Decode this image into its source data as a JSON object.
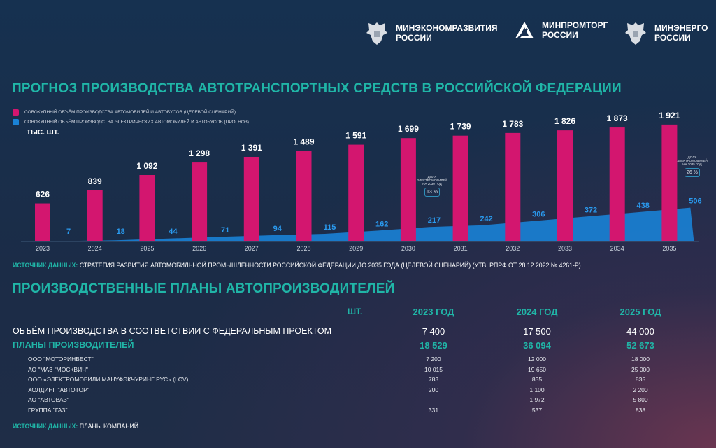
{
  "header": {
    "logos": [
      {
        "line1": "МИНЭКОНОМРАЗВИТИЯ",
        "line2": "РОССИИ",
        "icon": "double-headed-eagle-emblem"
      },
      {
        "line1": "МИНПРОМТОРГ",
        "line2": "РОССИИ",
        "icon": "triangle-logo"
      },
      {
        "line1": "МИНЭНЕРГО",
        "line2": "РОССИИ",
        "icon": "double-headed-eagle-emblem"
      }
    ]
  },
  "chart_data": {
    "type": "bar",
    "title": "ПРОГНОЗ ПРОИЗВОДСТВА АВТОТРАНСПОРТНЫХ СРЕДСТВ В РОССИЙСКОЙ ФЕДЕРАЦИИ",
    "ylabel": "ТЫС. ШТ.",
    "categories": [
      "2023",
      "2024",
      "2025",
      "2026",
      "2027",
      "2028",
      "2029",
      "2030",
      "2031",
      "2032",
      "2033",
      "2034",
      "2035"
    ],
    "series": [
      {
        "name": "СОВОКУПНЫЙ ОБЪЁМ ПРОИЗВОДСТВА АВТОМОБИЛЕЙ И АВТОБУСОВ (ЦЕЛЕВОЙ СЦЕНАРИЙ)",
        "type": "bar",
        "color": "#d3166f",
        "values": [
          626,
          839,
          1092,
          1298,
          1391,
          1489,
          1591,
          1699,
          1739,
          1783,
          1826,
          1873,
          1921
        ],
        "labels": [
          "626",
          "839",
          "1 092",
          "1 298",
          "1 391",
          "1 489",
          "1 591",
          "1 699",
          "1 739",
          "1 783",
          "1 826",
          "1 873",
          "1 921"
        ]
      },
      {
        "name": "СОВОКУПНЫЙ ОБЪЁМ ПРОИЗВОДСТВА ЭЛЕКТРИЧЕСКИХ АВТОМОБИЛЕЙ И АВТОБУСОВ (ПРОГНОЗ)",
        "type": "area",
        "color": "#1a82d6",
        "values": [
          7,
          18,
          44,
          71,
          94,
          115,
          162,
          217,
          242,
          306,
          372,
          438,
          506
        ]
      }
    ],
    "annotations": [
      {
        "year": "2030",
        "text": "ДОЛЯ ЭЛЕКТРОМОБИЛЕЙ НА 2030 ГОД",
        "value": "13 %"
      },
      {
        "year": "2035",
        "text": "ДОЛЯ ЭЛЕКТРОМОБИЛЕЙ НА 2035 ГОД",
        "value": "26 %"
      }
    ],
    "legend": "top-left",
    "grid": false
  },
  "source1": {
    "label": "ИСТОЧНИК ДАННЫХ:",
    "text": " СТРАТЕГИЯ РАЗВИТИЯ АВТОМОБИЛЬНОЙ ПРОМЫШЛЕННОСТИ РОССИЙСКОЙ ФЕДЕРАЦИИ ДО 2035 ГОДА (ЦЕЛЕВОЙ СЦЕНАРИЙ) (УТВ. РПРФ ОТ 28.12.2022 № 4261-Р)"
  },
  "plans": {
    "title": "ПРОИЗВОДСТВЕННЫЕ ПЛАНЫ АВТОПРОИЗВОДИТЕЛЕЙ",
    "unit": "ШТ.",
    "columns": [
      "2023 ГОД",
      "2024 ГОД",
      "2025 ГОД"
    ],
    "federal": {
      "label": "ОБЪЁМ ПРОИЗВОДСТВА В СООТВЕТСТВИИ С ФЕДЕРАЛЬНЫМ ПРОЕКТОМ",
      "values": [
        "7 400",
        "17 500",
        "44 000"
      ]
    },
    "total": {
      "label": "ПЛАНЫ ПРОИЗВОДИТЕЛЕЙ",
      "values": [
        "18 529",
        "36 094",
        "52 673"
      ]
    },
    "rows": [
      {
        "label": "ООО \"МОТОРИНВЕСТ\"",
        "values": [
          "7 200",
          "12 000",
          "18 000"
        ]
      },
      {
        "label": "АО \"МАЗ \"МОСКВИЧ\"",
        "values": [
          "10 015",
          "19 650",
          "25 000"
        ]
      },
      {
        "label": "ООО «ЭЛЕКТРОМОБИЛИ МАНУФЭКЧУРИНГ РУС» (LCV)",
        "values": [
          "783",
          "835",
          "835"
        ]
      },
      {
        "label": "ХОЛДИНГ \"АВТОТОР\"",
        "values": [
          "200",
          "1 100",
          "2 200"
        ]
      },
      {
        "label": "АО \"АВТОВАЗ\"",
        "values": [
          "",
          "1 972",
          "5 800"
        ]
      },
      {
        "label": "ГРУППА \"ГАЗ\"",
        "values": [
          "331",
          "537",
          "838"
        ]
      }
    ]
  },
  "source2": {
    "label": "ИСТОЧНИК ДАННЫХ:",
    "text": " ПЛАНЫ КОМПАНИЙ"
  }
}
